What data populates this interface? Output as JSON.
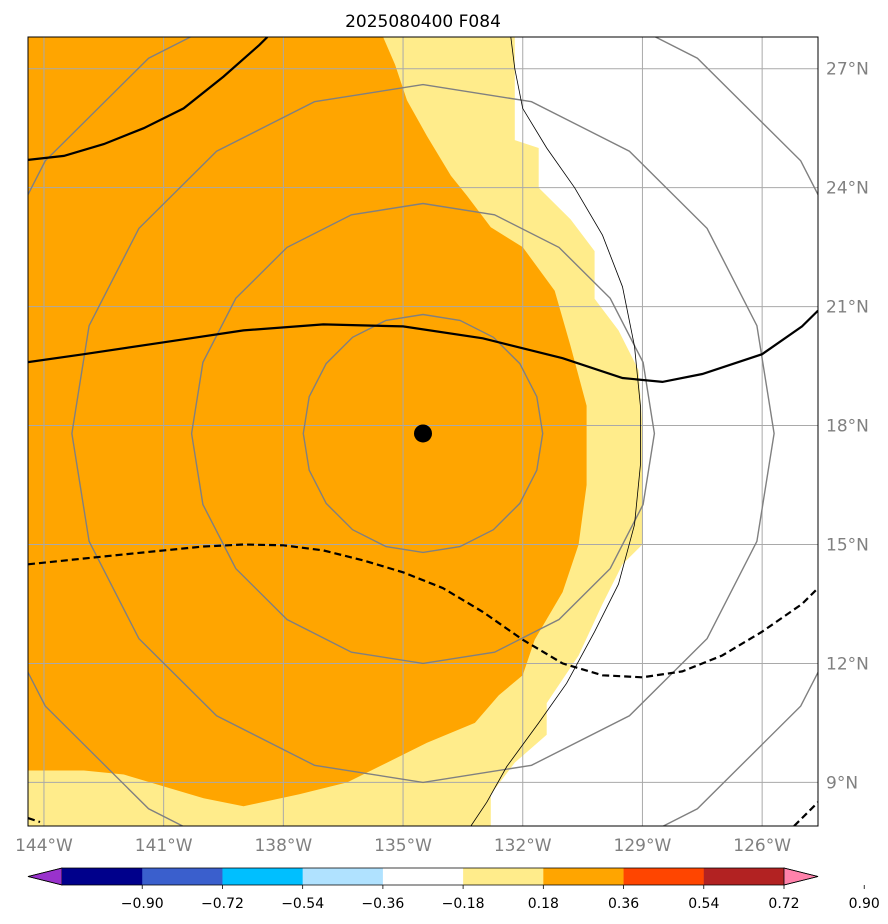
{
  "chart_data": {
    "type": "map-contour",
    "title": "2025080400 F084",
    "x_range": [
      -144.4,
      -124.6
    ],
    "y_range": [
      7.9,
      27.8
    ],
    "x_ticks": [
      {
        "value": -144,
        "label": "144°W"
      },
      {
        "value": -141,
        "label": "141°W"
      },
      {
        "value": -138,
        "label": "138°W"
      },
      {
        "value": -135,
        "label": "135°W"
      },
      {
        "value": -132,
        "label": "132°W"
      },
      {
        "value": -129,
        "label": "129°W"
      },
      {
        "value": -126,
        "label": "126°W"
      }
    ],
    "y_ticks": [
      {
        "value": 9,
        "label": "9°N"
      },
      {
        "value": 12,
        "label": "12°N"
      },
      {
        "value": 15,
        "label": "15°N"
      },
      {
        "value": 18,
        "label": "18°N"
      },
      {
        "value": 21,
        "label": "21°N"
      },
      {
        "value": 24,
        "label": "24°N"
      },
      {
        "value": 27,
        "label": "27°N"
      }
    ],
    "grid": true,
    "center_marker": {
      "lon": -134.5,
      "lat": 17.8
    },
    "range_rings_deg": [
      3,
      5.8,
      8.8,
      11.7
    ],
    "colorbar": {
      "orientation": "horizontal",
      "extend": "both",
      "bounds": [
        -0.9,
        -0.72,
        -0.54,
        -0.36,
        -0.18,
        0.18,
        0.36,
        0.54,
        0.72,
        0.9
      ],
      "labels": [
        "−0.90",
        "−0.72",
        "−0.54",
        "−0.36",
        "−0.18",
        "0.18",
        "0.36",
        "0.54",
        "0.72",
        "0.90"
      ],
      "colors": [
        "#9932cc",
        "#00008b",
        "#3a5fcd",
        "#00bfff",
        "#b0e2ff",
        "#ffffff",
        "#ffec8b",
        "#ffa500",
        "#ff4500",
        "#b22222",
        "#ff82ab"
      ]
    },
    "filled_regions": [
      {
        "level": "0.18-0.36",
        "color": "#ffec8b",
        "polygon": [
          [
            -144.4,
            27.8
          ],
          [
            -132.2,
            27.8
          ],
          [
            -132.2,
            25.2
          ],
          [
            -131.6,
            25.0
          ],
          [
            -131.6,
            24.0
          ],
          [
            -130.8,
            23.2
          ],
          [
            -130.2,
            22.4
          ],
          [
            -130.2,
            21.2
          ],
          [
            -129.6,
            20.4
          ],
          [
            -129.1,
            19.4
          ],
          [
            -129.0,
            18.0
          ],
          [
            -129.0,
            15.0
          ],
          [
            -129.5,
            14.5
          ],
          [
            -130.0,
            13.5
          ],
          [
            -130.6,
            12.2
          ],
          [
            -131.4,
            11.0
          ],
          [
            -131.4,
            10.2
          ],
          [
            -132.2,
            9.5
          ],
          [
            -132.8,
            8.7
          ],
          [
            -132.8,
            7.9
          ],
          [
            -144.4,
            7.9
          ]
        ]
      },
      {
        "level": "0.36-0.54",
        "color": "#ffa500",
        "polygon": [
          [
            -144.4,
            27.8
          ],
          [
            -135.5,
            27.8
          ],
          [
            -135.2,
            27.1
          ],
          [
            -134.9,
            26.2
          ],
          [
            -134.4,
            25.3
          ],
          [
            -133.8,
            24.3
          ],
          [
            -133.4,
            23.8
          ],
          [
            -132.8,
            23.0
          ],
          [
            -132.0,
            22.5
          ],
          [
            -131.2,
            21.4
          ],
          [
            -130.8,
            20.0
          ],
          [
            -130.4,
            18.5
          ],
          [
            -130.4,
            16.5
          ],
          [
            -130.6,
            15.0
          ],
          [
            -131.0,
            13.8
          ],
          [
            -131.7,
            12.6
          ],
          [
            -132.0,
            11.7
          ],
          [
            -132.6,
            11.2
          ],
          [
            -133.2,
            10.5
          ],
          [
            -134.4,
            10.0
          ],
          [
            -135.4,
            9.5
          ],
          [
            -136.4,
            9.0
          ],
          [
            -137.6,
            8.7
          ],
          [
            -139.0,
            8.4
          ],
          [
            -140.0,
            8.6
          ],
          [
            -142.0,
            9.2
          ],
          [
            -143.0,
            9.3
          ],
          [
            -144.4,
            9.3
          ]
        ]
      }
    ],
    "line_contours": [
      {
        "style": "solid",
        "points": [
          [
            -144.4,
            24.7
          ],
          [
            -143.5,
            24.8
          ],
          [
            -142.5,
            25.1
          ],
          [
            -141.5,
            25.5
          ],
          [
            -140.5,
            26.0
          ],
          [
            -139.5,
            26.8
          ],
          [
            -138.6,
            27.6
          ],
          [
            -138.4,
            27.8
          ]
        ]
      },
      {
        "style": "solid",
        "points": [
          [
            -144.4,
            19.6
          ],
          [
            -143.0,
            19.8
          ],
          [
            -141.0,
            20.1
          ],
          [
            -139.0,
            20.4
          ],
          [
            -137.0,
            20.55
          ],
          [
            -135.0,
            20.5
          ],
          [
            -133.0,
            20.2
          ],
          [
            -131.0,
            19.7
          ],
          [
            -129.5,
            19.2
          ],
          [
            -128.5,
            19.1
          ],
          [
            -127.5,
            19.3
          ],
          [
            -126.0,
            19.8
          ],
          [
            -125.0,
            20.5
          ],
          [
            -124.6,
            20.9
          ]
        ]
      },
      {
        "style": "dashed",
        "points": [
          [
            -144.4,
            14.5
          ],
          [
            -142.0,
            14.75
          ],
          [
            -140.0,
            14.95
          ],
          [
            -139.0,
            15.0
          ],
          [
            -138.0,
            14.98
          ],
          [
            -137.0,
            14.85
          ],
          [
            -136.0,
            14.6
          ],
          [
            -135.0,
            14.3
          ],
          [
            -134.0,
            13.9
          ],
          [
            -133.0,
            13.3
          ],
          [
            -132.0,
            12.6
          ],
          [
            -131.0,
            12.0
          ],
          [
            -130.0,
            11.7
          ],
          [
            -129.0,
            11.65
          ],
          [
            -128.0,
            11.8
          ],
          [
            -127.0,
            12.2
          ],
          [
            -126.0,
            12.8
          ],
          [
            -125.0,
            13.5
          ],
          [
            -124.6,
            13.9
          ]
        ]
      },
      {
        "style": "dashed",
        "points": [
          [
            -144.4,
            8.1
          ],
          [
            -144.1,
            8.0
          ]
        ]
      },
      {
        "style": "dashed",
        "points": [
          [
            -125.2,
            7.9
          ],
          [
            -124.6,
            8.5
          ]
        ]
      },
      {
        "style": "thin",
        "points": [
          [
            -132.3,
            27.8
          ],
          [
            -132.2,
            27.0
          ],
          [
            -132.0,
            26.0
          ],
          [
            -131.4,
            25.0
          ],
          [
            -130.7,
            24.0
          ],
          [
            -130.0,
            22.8
          ],
          [
            -129.5,
            21.5
          ],
          [
            -129.2,
            20.0
          ],
          [
            -129.05,
            18.5
          ],
          [
            -129.05,
            17.0
          ],
          [
            -129.2,
            15.5
          ],
          [
            -129.6,
            14.0
          ],
          [
            -130.2,
            12.8
          ],
          [
            -130.9,
            11.5
          ],
          [
            -131.6,
            10.5
          ],
          [
            -132.4,
            9.4
          ],
          [
            -132.9,
            8.5
          ],
          [
            -133.3,
            7.9
          ]
        ]
      }
    ]
  }
}
